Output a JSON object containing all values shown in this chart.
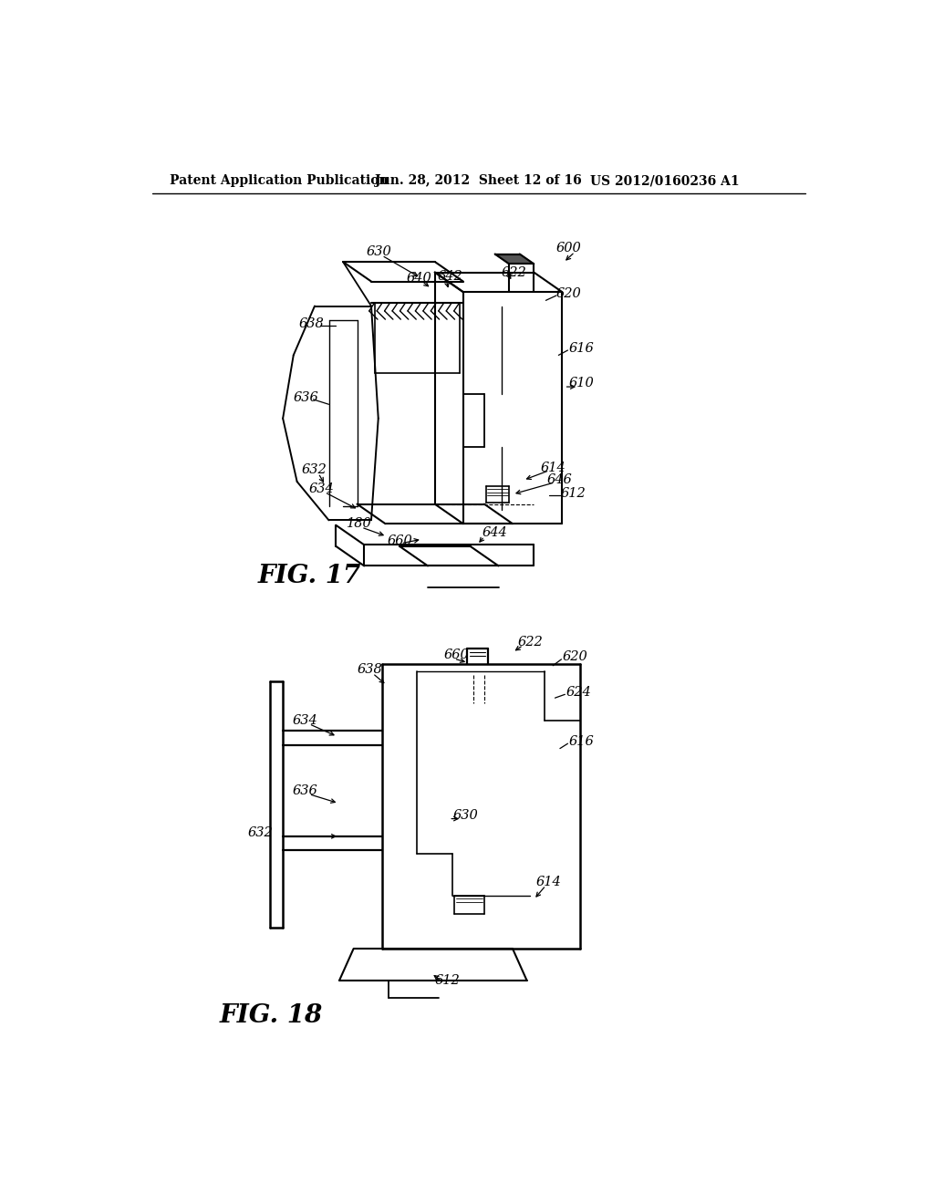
{
  "background_color": "#ffffff",
  "header_text": "Patent Application Publication",
  "header_date": "Jun. 28, 2012  Sheet 12 of 16",
  "header_patent": "US 2012/0160236 A1",
  "fig17_label": "FIG. 17",
  "fig18_label": "FIG. 18",
  "line_color": "#000000",
  "text_color": "#000000"
}
